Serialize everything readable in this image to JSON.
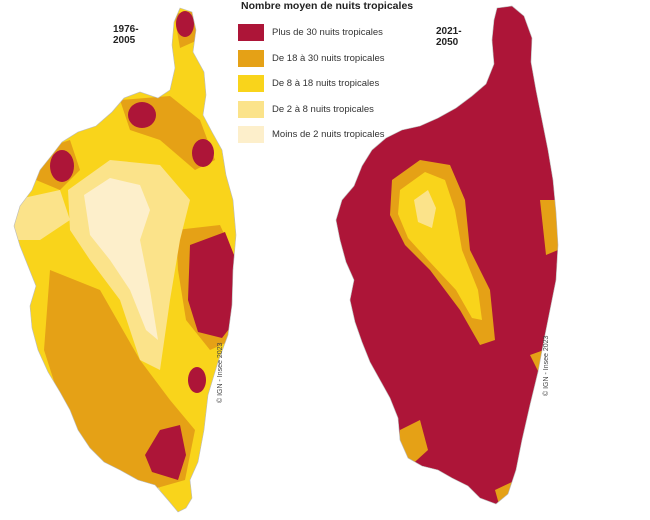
{
  "legend": {
    "title": "Nombre moyen de nuits tropicales",
    "items": [
      {
        "label": "Plus de 30 nuits tropicales",
        "color": "#ad1538"
      },
      {
        "label": "De 18 à 30 nuits tropicales",
        "color": "#e5a116"
      },
      {
        "label": "De 8 à 18 nuits tropicales",
        "color": "#f9d41b"
      },
      {
        "label": "De 2 à 8 nuits tropicales",
        "color": "#fbe38a"
      },
      {
        "label": "Moins de 2 nuits tropicales",
        "color": "#fdefcb"
      }
    ]
  },
  "maps": [
    {
      "period": "1976-2005",
      "credit": "© IGN - Insee 2023"
    },
    {
      "period": "2021-2050",
      "credit": "© IGN - Insee 2023"
    }
  ]
}
